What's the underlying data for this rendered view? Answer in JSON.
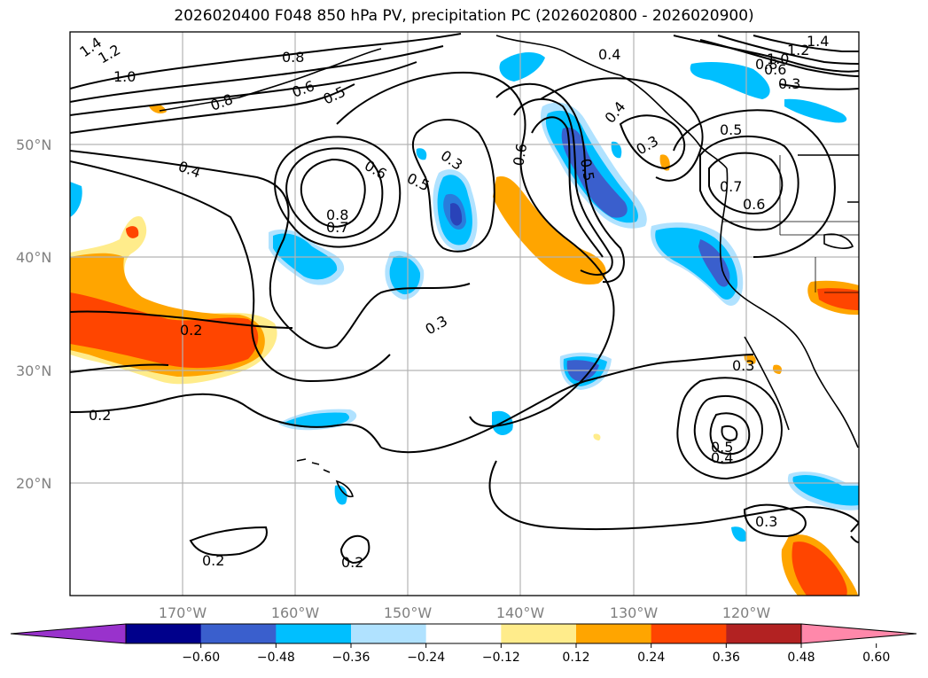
{
  "title": "2026020400 F048 850 hPa PV, precipitation PC (2026020800 - 2026020900)",
  "map": {
    "lat_labels": [
      "50°N",
      "40°N",
      "30°N",
      "20°N"
    ],
    "lon_labels": [
      "170°W",
      "160°W",
      "150°W",
      "140°W",
      "130°W",
      "120°W"
    ],
    "contour_labels": [
      "1.4",
      "1.2",
      "1.0",
      "0.8",
      "0.8",
      "0.6",
      "0.5",
      "0.4",
      "0.8",
      "0.7",
      "0.6",
      "0.5",
      "0.3",
      "0.6",
      "0.5",
      "0.4",
      "0.4",
      "0.3",
      "0.5",
      "0.7",
      "0.6",
      "1.4",
      "1.2",
      "1.0",
      "0.8",
      "0.6",
      "0.3",
      "0.2",
      "0.3",
      "0.2",
      "0.2",
      "0.3",
      "0.5",
      "0.4",
      "0.3",
      "0.2"
    ]
  },
  "colorbar": {
    "ticks": [
      "−0.60",
      "−0.48",
      "−0.36",
      "−0.24",
      "−0.12",
      "0.12",
      "0.24",
      "0.36",
      "0.48",
      "0.60"
    ],
    "colors": [
      "#9932cc",
      "#00008b",
      "#3a5fcd",
      "#00bfff",
      "#b0e2ff",
      "#ffffff",
      "#ffec8b",
      "#ffa500",
      "#ff4500",
      "#b22222",
      "#ff88aa"
    ]
  }
}
